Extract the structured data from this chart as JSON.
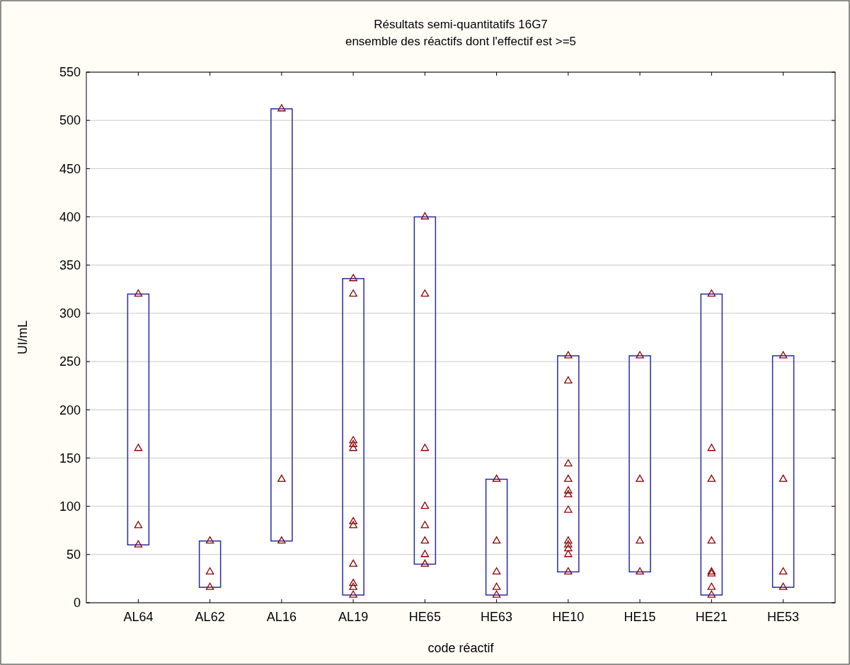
{
  "chart_data": {
    "type": "bar",
    "title": "Résultats semi-quantitatifs 16G7",
    "subtitle": "ensemble des réactifs dont l'effectif est >=5",
    "xlabel": "code réactif",
    "ylabel": "UI/mL",
    "categories": [
      "AL64",
      "AL62",
      "AL16",
      "AL19",
      "HE65",
      "HE63",
      "HE10",
      "HE15",
      "HE21",
      "HE53"
    ],
    "ylim": [
      0,
      550
    ],
    "yticks": [
      0,
      50,
      100,
      150,
      200,
      250,
      300,
      350,
      400,
      450,
      500,
      550
    ],
    "grid": "y",
    "series": [
      {
        "color": "#2a2aa0",
        "base": [
          60,
          16,
          64,
          8,
          40,
          8,
          32,
          32,
          8,
          16
        ],
        "values": [
          260,
          48,
          448,
          328,
          360,
          120,
          224,
          224,
          312,
          240
        ]
      },
      {
        "type": "scatter",
        "color": "#8b0000",
        "marker": "triangle",
        "x": [
          "AL64",
          "AL64",
          "AL64",
          "AL64",
          "AL62",
          "AL62",
          "AL62",
          "AL16",
          "AL16",
          "AL16",
          "AL19",
          "AL19",
          "AL19",
          "AL19",
          "AL19",
          "AL19",
          "AL19",
          "AL19",
          "AL19",
          "AL19",
          "AL19",
          "HE65",
          "HE65",
          "HE65",
          "HE65",
          "HE65",
          "HE65",
          "HE65",
          "HE65",
          "HE63",
          "HE63",
          "HE63",
          "HE63",
          "HE63",
          "HE10",
          "HE10",
          "HE10",
          "HE10",
          "HE10",
          "HE10",
          "HE10",
          "HE10",
          "HE10",
          "HE10",
          "HE10",
          "HE10",
          "HE15",
          "HE15",
          "HE15",
          "HE15",
          "HE21",
          "HE21",
          "HE21",
          "HE21",
          "HE21",
          "HE21",
          "HE21",
          "HE21",
          "HE53",
          "HE53",
          "HE53",
          "HE53"
        ],
        "values": [
          320,
          160,
          80,
          60,
          64,
          32,
          16,
          512,
          128,
          64,
          336,
          320,
          168,
          164,
          160,
          84,
          80,
          40,
          20,
          16,
          8,
          400,
          320,
          160,
          100,
          80,
          64,
          50,
          40,
          128,
          64,
          32,
          16,
          8,
          256,
          230,
          144,
          128,
          116,
          112,
          96,
          64,
          60,
          56,
          50,
          32,
          256,
          128,
          64,
          32,
          320,
          160,
          128,
          64,
          32,
          30,
          16,
          8,
          256,
          128,
          32,
          16
        ]
      }
    ]
  }
}
